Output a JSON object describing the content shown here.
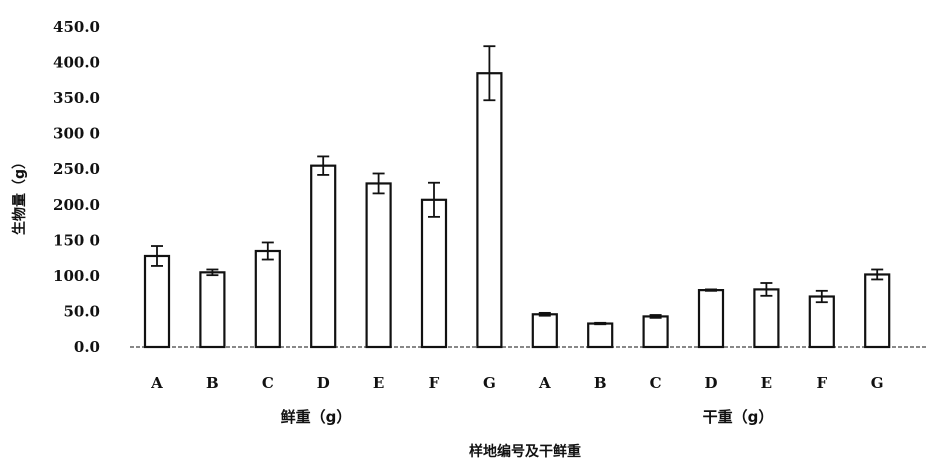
{
  "chart_data": {
    "type": "bar",
    "title": "",
    "ylabel": "生物量（g）",
    "xlabel": "样地编号及干鲜重",
    "ylim": [
      0,
      450
    ],
    "yticks": [
      {
        "value": 0,
        "label": "0.0"
      },
      {
        "value": 50,
        "label": "50.0"
      },
      {
        "value": 100,
        "label": "100.0"
      },
      {
        "value": 150,
        "label": "150 0"
      },
      {
        "value": 200,
        "label": "200.0"
      },
      {
        "value": 250,
        "label": "250.0"
      },
      {
        "value": 300,
        "label": "300 0"
      },
      {
        "value": 350,
        "label": "350.0"
      },
      {
        "value": 400,
        "label": "400.0"
      },
      {
        "value": 450,
        "label": "450.0"
      }
    ],
    "groups": [
      {
        "label": "鲜重（g）",
        "categories": [
          "A",
          "B",
          "C",
          "D",
          "E",
          "F",
          "G"
        ],
        "values": [
          128,
          105,
          135,
          255,
          230,
          207,
          385
        ],
        "errors": [
          14,
          4,
          12,
          13,
          14,
          24,
          38
        ]
      },
      {
        "label": "干重（g）",
        "categories": [
          "A",
          "B",
          "C",
          "D",
          "E",
          "F",
          "G"
        ],
        "values": [
          46,
          33,
          43,
          80,
          81,
          71,
          102
        ],
        "errors": [
          2,
          1,
          2,
          1,
          9,
          8,
          7
        ]
      }
    ],
    "grid": false,
    "legend": "none"
  }
}
